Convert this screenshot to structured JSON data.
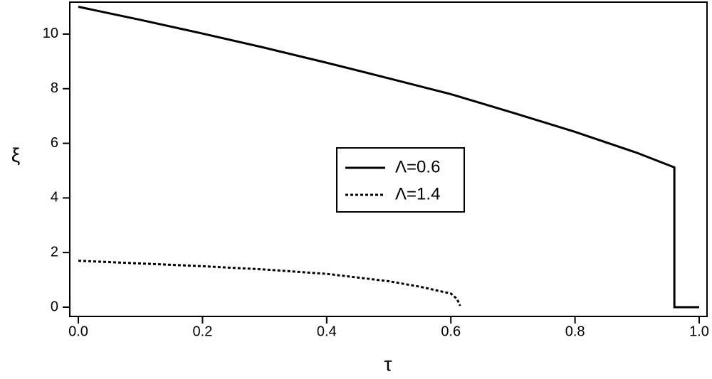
{
  "chart_data": {
    "type": "line",
    "x_label": "τ",
    "y_label": "ξ",
    "xlim": [
      -0.0138,
      1.0126
    ],
    "ylim": [
      -0.339,
      11.17
    ],
    "xticks": [
      {
        "value": 0,
        "label": "0.0"
      },
      0.2,
      0.4,
      0.6,
      0.8,
      {
        "value": 1,
        "label": "1.0"
      }
    ],
    "yticks": [
      0,
      2,
      4,
      6,
      8,
      10
    ],
    "legend": "center",
    "series": [
      {
        "name": "Λ=0.6",
        "color": "#000000",
        "style": "solid",
        "x": [
          0,
          0.1,
          0.2,
          0.3,
          0.4,
          0.5,
          0.6,
          0.7,
          0.8,
          0.9,
          0.96,
          0.96,
          1.0
        ],
        "values": [
          11.0,
          10.52,
          10.02,
          9.5,
          8.95,
          8.38,
          7.8,
          7.12,
          6.42,
          5.65,
          5.12,
          0,
          0
        ]
      },
      {
        "name": "Λ=1.4",
        "color": "#000000",
        "style": "dotted",
        "x": [
          0,
          0.1,
          0.2,
          0.3,
          0.4,
          0.5,
          0.55,
          0.6,
          0.61,
          0.615
        ],
        "values": [
          1.7,
          1.6,
          1.5,
          1.38,
          1.22,
          0.95,
          0.75,
          0.5,
          0.3,
          0.05
        ]
      }
    ]
  }
}
